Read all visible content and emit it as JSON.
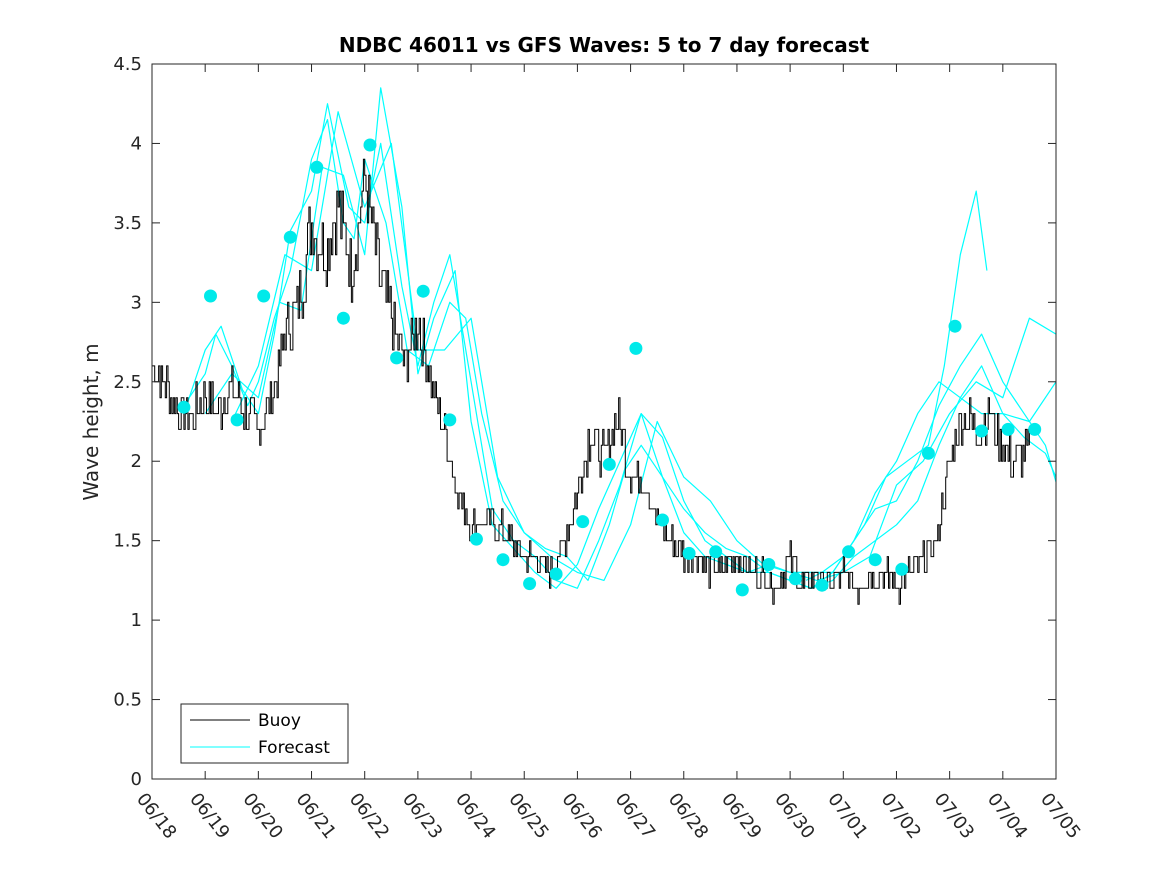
{
  "chart_data": {
    "type": "line",
    "title": "NDBC 46011 vs GFS Waves: 5 to 7 day forecast",
    "xlabel": "",
    "ylabel": "Wave height, m",
    "xlim": [
      "06/18",
      "07/05"
    ],
    "ylim": [
      0,
      4.5
    ],
    "x_tick_labels": [
      "06/18",
      "06/19",
      "06/20",
      "06/21",
      "06/22",
      "06/23",
      "06/24",
      "06/25",
      "06/26",
      "06/27",
      "06/28",
      "06/29",
      "06/30",
      "07/01",
      "07/02",
      "07/03",
      "07/04",
      "07/05"
    ],
    "y_ticks": [
      0,
      0.5,
      1,
      1.5,
      2,
      2.5,
      3,
      3.5,
      4,
      4.5
    ],
    "y_tick_labels": [
      "0",
      "0.5",
      "1",
      "1.5",
      "2",
      "2.5",
      "3",
      "3.5",
      "4",
      "4.5"
    ],
    "x_unit": "days since 06/18",
    "grid": false,
    "legend": {
      "position": "bottom-left",
      "entries": [
        "Buoy",
        "Forecast"
      ]
    },
    "colors": {
      "buoy": "#000000",
      "forecast": "#00FFFF",
      "marker": "#00EAEA",
      "axes": "#262626"
    },
    "series": [
      {
        "name": "Buoy",
        "x": [
          0.0,
          0.25,
          0.5,
          0.75,
          1.0,
          1.25,
          1.5,
          1.75,
          2.0,
          2.25,
          2.5,
          2.75,
          3.0,
          3.25,
          3.5,
          3.75,
          4.0,
          4.25,
          4.5,
          4.75,
          5.0,
          5.25,
          5.5,
          5.75,
          6.0,
          6.25,
          6.5,
          6.75,
          7.0,
          7.25,
          7.5,
          7.75,
          8.0,
          8.25,
          8.5,
          8.75,
          9.0,
          9.25,
          9.5,
          9.75,
          10.0,
          10.25,
          10.5,
          10.75,
          11.0,
          11.25,
          11.5,
          11.75,
          12.0,
          12.25,
          12.5,
          12.75,
          13.0,
          13.25,
          13.5,
          13.75,
          14.0,
          14.25,
          14.5,
          14.75,
          15.0,
          15.25,
          15.5,
          15.75,
          16.0,
          16.25,
          16.5
        ],
        "y": [
          2.6,
          2.5,
          2.3,
          2.3,
          2.4,
          2.3,
          2.5,
          2.3,
          2.2,
          2.4,
          2.8,
          3.0,
          3.5,
          3.3,
          3.6,
          3.2,
          3.8,
          3.2,
          2.9,
          2.6,
          2.9,
          2.5,
          2.2,
          1.8,
          1.6,
          1.6,
          1.6,
          1.5,
          1.4,
          1.4,
          1.3,
          1.5,
          1.8,
          2.2,
          2.0,
          2.3,
          1.9,
          1.9,
          1.6,
          1.5,
          1.4,
          1.4,
          1.3,
          1.3,
          1.4,
          1.3,
          1.3,
          1.2,
          1.4,
          1.2,
          1.3,
          1.2,
          1.3,
          1.2,
          1.3,
          1.3,
          1.2,
          1.3,
          1.4,
          1.5,
          2.0,
          2.3,
          2.2,
          2.3,
          2.1,
          2.0,
          2.1
        ]
      }
    ],
    "forecast_runs": [
      {
        "x": [
          0.6,
          1.0,
          1.2,
          1.5,
          1.8,
          2.0,
          2.3,
          2.6,
          3.0,
          3.3,
          3.6,
          3.8,
          4.0,
          4.4,
          4.8,
          5.2,
          5.6,
          5.9,
          6.2,
          6.6,
          7.0,
          7.4,
          7.8,
          8.2,
          8.6,
          8.9,
          9.2,
          9.6,
          10.0,
          10.4,
          10.8,
          11.2,
          11.6,
          12.0,
          12.4,
          12.8,
          13.2,
          13.6,
          14.0,
          14.4,
          14.8,
          15.2,
          15.6,
          16.0,
          16.4,
          16.8,
          17.0
        ],
        "y": [
          2.35,
          2.55,
          2.8,
          2.6,
          2.35,
          2.5,
          2.9,
          3.2,
          3.9,
          4.15,
          3.5,
          3.4,
          3.9,
          3.5,
          2.7,
          2.6,
          3.0,
          2.9,
          2.3,
          1.75,
          1.55,
          1.45,
          1.4,
          1.25,
          1.6,
          1.95,
          2.1,
          1.9,
          1.7,
          1.55,
          1.45,
          1.4,
          1.3,
          1.25,
          1.2,
          1.25,
          1.4,
          1.5,
          1.6,
          1.75,
          2.1,
          2.4,
          2.6,
          2.3,
          2.15,
          2.05,
          1.9
        ]
      },
      {
        "x": [
          0.6,
          1.0,
          1.3,
          1.7,
          2.0,
          2.3,
          2.6,
          3.0,
          3.3,
          3.7,
          4.0,
          4.3,
          4.7,
          5.0,
          5.3,
          5.6,
          6.0,
          6.4,
          6.8,
          7.2,
          7.6,
          8.0,
          8.4,
          8.8,
          9.2,
          9.6,
          10.0,
          10.4,
          10.8,
          11.2,
          11.6,
          12.0,
          12.4,
          12.8,
          13.2,
          13.6,
          14.0,
          14.4,
          14.8,
          15.2,
          15.6,
          16.0,
          16.4,
          16.8,
          17.0
        ],
        "y": [
          2.3,
          2.7,
          2.85,
          2.45,
          2.3,
          2.8,
          3.45,
          3.7,
          4.25,
          3.6,
          3.5,
          4.0,
          3.1,
          2.6,
          3.0,
          3.3,
          2.5,
          1.7,
          1.5,
          1.4,
          1.25,
          1.2,
          1.5,
          1.85,
          2.3,
          2.15,
          1.75,
          1.5,
          1.4,
          1.3,
          1.35,
          1.3,
          1.3,
          1.3,
          1.5,
          1.7,
          1.75,
          2.0,
          2.35,
          2.6,
          2.8,
          2.5,
          2.3,
          2.1,
          1.87
        ]
      },
      {
        "x": [
          1.0,
          1.5,
          2.0,
          2.4,
          2.8,
          3.2,
          3.6,
          4.0,
          4.3,
          4.7,
          5.0,
          5.3,
          5.7,
          6.0,
          6.4,
          6.8,
          7.2,
          7.6,
          8.0,
          8.4,
          8.8,
          9.2,
          9.6,
          10.0,
          10.4,
          10.8,
          11.2,
          11.6,
          12.0,
          12.4,
          12.8,
          13.2,
          13.6,
          14.0,
          14.4,
          14.8,
          15.2,
          15.6,
          16.0,
          16.5,
          17.0
        ],
        "y": [
          2.3,
          2.55,
          2.4,
          3.0,
          2.95,
          3.85,
          3.8,
          3.3,
          4.35,
          3.6,
          2.55,
          2.9,
          3.2,
          2.25,
          1.6,
          1.45,
          1.3,
          1.2,
          1.35,
          1.7,
          2.0,
          2.3,
          1.9,
          1.55,
          1.4,
          1.35,
          1.3,
          1.3,
          1.25,
          1.2,
          1.3,
          1.5,
          1.8,
          2.0,
          2.3,
          2.5,
          2.4,
          2.3,
          2.3,
          2.25,
          2.5
        ]
      },
      {
        "x": [
          1.5,
          2.0,
          2.5,
          3.0,
          3.5,
          4.0,
          4.5,
          5.0,
          5.5,
          6.0,
          6.5,
          7.0,
          7.5,
          8.0,
          8.5,
          9.0,
          9.5,
          10.0,
          10.5,
          11.0,
          11.5,
          12.0,
          12.5,
          13.0,
          13.5,
          14.0,
          14.5,
          15.0,
          15.5,
          16.0,
          16.5,
          17.0
        ],
        "y": [
          2.25,
          2.6,
          3.3,
          3.2,
          4.2,
          3.6,
          4.0,
          2.7,
          2.7,
          2.9,
          1.9,
          1.55,
          1.4,
          1.3,
          1.25,
          1.6,
          2.25,
          1.9,
          1.75,
          1.5,
          1.35,
          1.3,
          1.25,
          1.3,
          1.4,
          1.85,
          2.0,
          2.3,
          2.5,
          2.4,
          2.9,
          2.8
        ]
      },
      {
        "x": [
          12.3,
          12.6,
          13.0,
          13.4,
          13.8,
          14.2,
          14.6,
          14.9,
          15.2,
          15.5,
          15.7
        ],
        "y": [
          1.25,
          1.3,
          1.4,
          1.6,
          1.9,
          2.0,
          2.1,
          2.6,
          3.3,
          3.7,
          3.2
        ]
      }
    ],
    "forecast_markers": {
      "x": [
        0.6,
        1.1,
        1.6,
        2.1,
        2.6,
        3.1,
        3.6,
        4.1,
        4.6,
        5.1,
        5.6,
        6.1,
        6.6,
        7.1,
        7.6,
        8.1,
        8.6,
        9.1,
        9.6,
        10.1,
        10.6,
        11.1,
        11.6,
        12.1,
        12.6,
        13.1,
        13.6,
        14.1,
        14.6,
        15.1,
        15.6,
        16.1,
        16.6
      ],
      "y": [
        2.34,
        3.04,
        2.26,
        3.04,
        3.41,
        3.85,
        2.9,
        3.99,
        2.65,
        3.07,
        2.26,
        1.51,
        1.38,
        1.23,
        1.29,
        1.62,
        1.98,
        2.71,
        1.63,
        1.42,
        1.43,
        1.19,
        1.35,
        1.26,
        1.22,
        1.43,
        1.38,
        1.32,
        2.05,
        2.85,
        2.19,
        2.2,
        2.2
      ]
    }
  }
}
